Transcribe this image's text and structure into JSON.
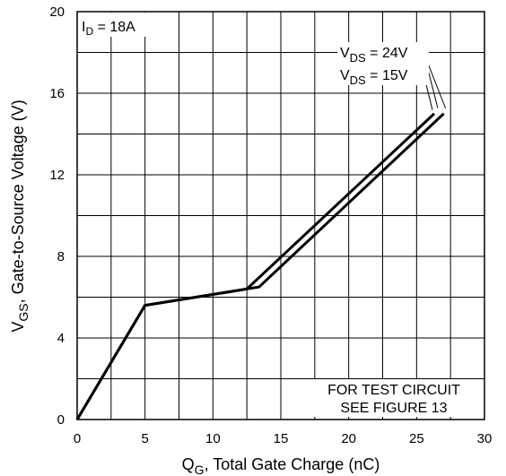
{
  "chart_data": {
    "type": "line",
    "xlabel": {
      "main": "Q",
      "sub": "G",
      "rest": ", Total Gate Charge (nC)"
    },
    "ylabel": {
      "main": "V",
      "sub": "GS",
      "rest": ", Gate-to-Source Voltage (V)"
    },
    "xlim": [
      0,
      30
    ],
    "ylim": [
      0,
      20
    ],
    "xticks": [
      0,
      5,
      10,
      15,
      20,
      25,
      30
    ],
    "yticks": [
      0,
      4,
      8,
      12,
      16,
      20
    ],
    "x_minor_step": 2.5,
    "y_minor_step": 2,
    "grid": true,
    "series": [
      {
        "name": "V_DS = 24V",
        "x": [
          0,
          5,
          12.5,
          26.3
        ],
        "y": [
          0,
          5.6,
          6.4,
          15.0
        ]
      },
      {
        "name": "V_DS = 15V",
        "x": [
          0,
          5,
          13.4,
          27.0
        ],
        "y": [
          0,
          5.6,
          6.5,
          15.0
        ]
      }
    ],
    "legend": [
      {
        "main": "V",
        "sub": "DS",
        "rest": " = 24V",
        "series_index": 0
      },
      {
        "main": "V",
        "sub": "DS",
        "rest": " = 15V",
        "series_index": 1
      }
    ],
    "annotations": {
      "id": {
        "main": "I",
        "sub": "D",
        "rest": " = 18A"
      },
      "test_circuit": [
        "FOR TEST CIRCUIT",
        "SEE FIGURE 13"
      ]
    }
  }
}
